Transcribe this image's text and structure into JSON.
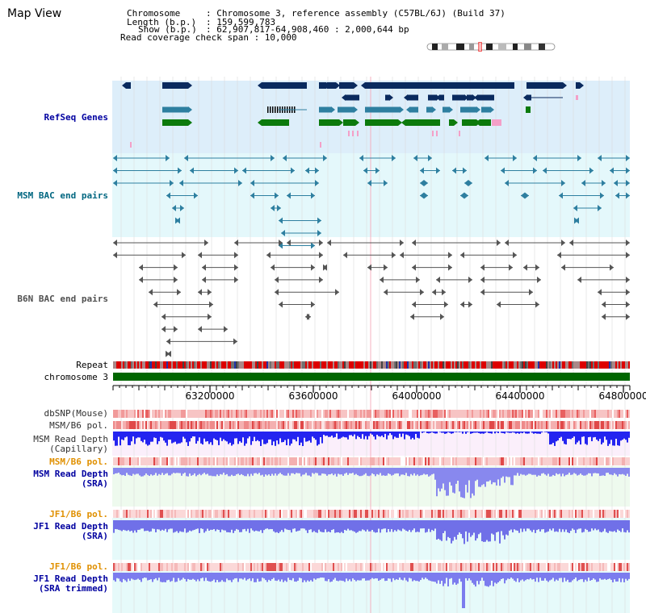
{
  "page": {
    "title": "Map View"
  },
  "header": {
    "chromosome_key": "Chromosome",
    "chromosome_value": ": Chromosome 3, reference assembly (C57BL/6J) (Build 37)",
    "length_key": "Length (b.p.)",
    "length_value": ": 159,599,783",
    "show_key": "Show (b.p.)",
    "show_value": ": 62,907,817-64,908,460 : 2,000,644 bp",
    "coverage_line": "Read coverage check span : 10,000"
  },
  "tracks": {
    "refseq": "RefSeq Genes",
    "msm_bac": "MSM BAC end pairs",
    "b6n_bac": "B6N BAC end pairs",
    "repeat": "Repeat",
    "chromosome": "chromosome 3",
    "dbsnp": "dbSNP(Mouse)",
    "msm_b6_pol_1": "MSM/B6 pol.",
    "msm_depth_cap_1": "MSM Read Depth",
    "msm_depth_cap_2": "(Capillary)",
    "msm_b6_pol_2": "MSM/B6 pol.",
    "msm_depth_sra_1": "MSM Read Depth",
    "msm_depth_sra_2": "(SRA)",
    "jf1_b6_pol_1": "JF1/B6 pol.",
    "jf1_depth_sra_1": "JF1 Read Depth",
    "jf1_depth_sra_2": "(SRA)",
    "jf1_b6_pol_2": "JF1/B6 pol.",
    "jf1_depth_trim_1": "JF1 Read Depth",
    "jf1_depth_trim_2": "(SRA trimmed)"
  },
  "axis": {
    "ticks": [
      "63200000",
      "63600000",
      "64000000",
      "64400000",
      "64800000"
    ]
  },
  "colors": {
    "refseq_bg": "#ddeefa",
    "msm_bg": "#e4f8fb",
    "cyan_bg": "#e6fafa",
    "navy": "#0a2a5e",
    "teal": "#2e7fa0",
    "green": "#0c7a0c",
    "pink": "#f4a0c8",
    "label_navy": "#0000a0",
    "label_teal": "#006680",
    "label_orange": "#e09000",
    "chromosome_green": "#006600"
  }
}
